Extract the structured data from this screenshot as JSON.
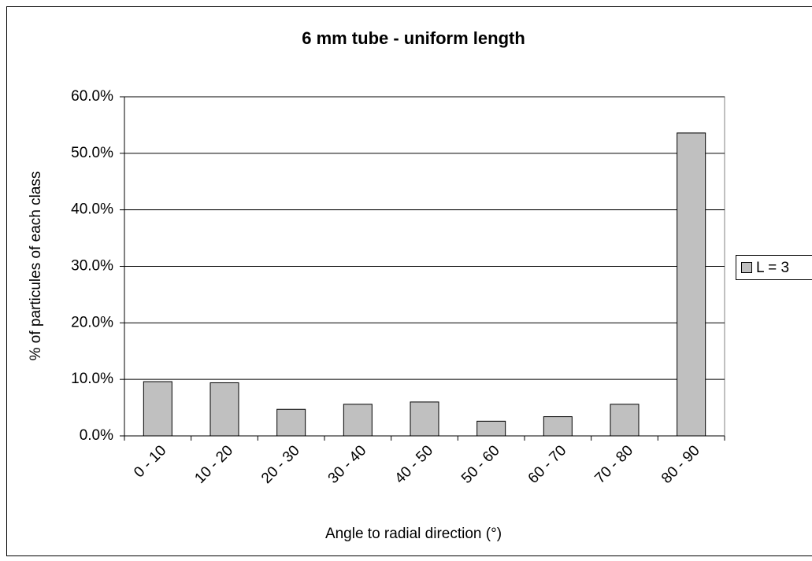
{
  "chart_data": {
    "type": "bar",
    "title": "6 mm tube - uniform length",
    "x_label": "Angle to radial direction (°)",
    "y_label": "% of particules of each class",
    "categories": [
      "0 - 10",
      "10 - 20",
      "20 - 30",
      "30 - 40",
      "40 - 50",
      "50 - 60",
      "60 - 70",
      "70 - 80",
      "80 - 90"
    ],
    "series": [
      {
        "name": "L = 3",
        "color": "#c0c0c0",
        "values": [
          9.6,
          9.4,
          4.7,
          5.6,
          6.0,
          2.6,
          3.4,
          5.6,
          53.6
        ]
      }
    ],
    "ylim": [
      0,
      60
    ],
    "yticks": [
      {
        "value": 0,
        "label": "0.0%"
      },
      {
        "value": 10,
        "label": "10.0%"
      },
      {
        "value": 20,
        "label": "20.0%"
      },
      {
        "value": 30,
        "label": "30.0%"
      },
      {
        "value": 40,
        "label": "40.0%"
      },
      {
        "value": 50,
        "label": "50.0%"
      },
      {
        "value": 60,
        "label": "60.0%"
      }
    ],
    "grid": true,
    "legend": "right"
  }
}
